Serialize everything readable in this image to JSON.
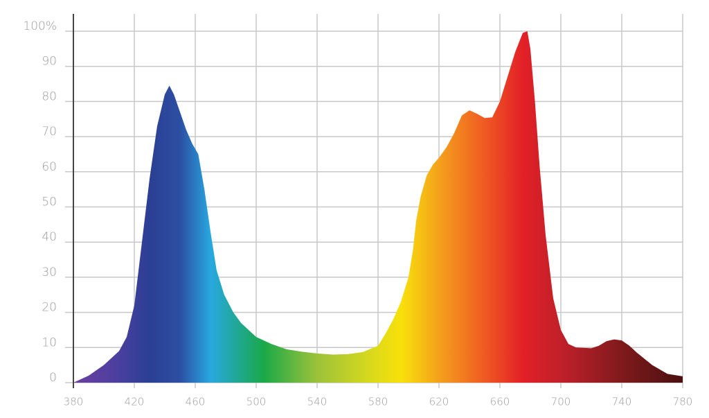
{
  "chart_data": {
    "type": "area",
    "x": [
      380,
      390,
      400,
      410,
      415,
      420,
      425,
      430,
      435,
      440,
      443,
      446,
      450,
      454,
      458,
      462,
      466,
      470,
      474,
      479,
      485,
      490,
      500,
      510,
      520,
      530,
      540,
      550,
      560,
      570,
      580,
      585,
      590,
      595,
      600,
      603,
      605,
      608,
      612,
      616,
      620,
      625,
      630,
      635,
      640,
      645,
      650,
      655,
      660,
      665,
      670,
      675,
      678,
      680,
      683,
      686,
      690,
      695,
      700,
      705,
      710,
      720,
      725,
      730,
      735,
      740,
      745,
      750,
      760,
      770,
      780
    ],
    "values": [
      0,
      2,
      5,
      9,
      13,
      22,
      40,
      58,
      73,
      82,
      84.5,
      82,
      77,
      72,
      68,
      65,
      55,
      43,
      32,
      25,
      20,
      17,
      13,
      11,
      9.5,
      8.8,
      8.3,
      8,
      8.1,
      8.7,
      10.5,
      14,
      18,
      23,
      30,
      38,
      46,
      53,
      59,
      62,
      64,
      67,
      71,
      76,
      77.5,
      76.5,
      75.3,
      75.5,
      80,
      87,
      94,
      99.5,
      100,
      95,
      80,
      62,
      42,
      24,
      15,
      11,
      10,
      9.8,
      10.5,
      11.8,
      12.3,
      12,
      10.5,
      8.5,
      5,
      2.5,
      1.8
    ],
    "xlim": [
      380,
      780
    ],
    "ylim": [
      0,
      100
    ],
    "xticks": [
      380,
      420,
      460,
      500,
      540,
      580,
      620,
      660,
      700,
      740,
      780
    ],
    "yticks": [
      0,
      10,
      20,
      30,
      40,
      50,
      60,
      70,
      80,
      90,
      {
        "value": 100,
        "label": "100%"
      }
    ],
    "grid": true,
    "gradient": [
      {
        "x": 380,
        "color": "#6b3fa0"
      },
      {
        "x": 410,
        "color": "#4a3f9e"
      },
      {
        "x": 430,
        "color": "#2b3f94"
      },
      {
        "x": 450,
        "color": "#2c4fa3"
      },
      {
        "x": 470,
        "color": "#28a8e0"
      },
      {
        "x": 490,
        "color": "#1fa88a"
      },
      {
        "x": 505,
        "color": "#1aa948"
      },
      {
        "x": 540,
        "color": "#9cc23a"
      },
      {
        "x": 575,
        "color": "#d8d91c"
      },
      {
        "x": 595,
        "color": "#f8e10a"
      },
      {
        "x": 620,
        "color": "#f4a11c"
      },
      {
        "x": 650,
        "color": "#ef5a23"
      },
      {
        "x": 675,
        "color": "#e32027"
      },
      {
        "x": 700,
        "color": "#c0202a"
      },
      {
        "x": 740,
        "color": "#7f1a1c"
      },
      {
        "x": 780,
        "color": "#4a1010"
      }
    ]
  }
}
